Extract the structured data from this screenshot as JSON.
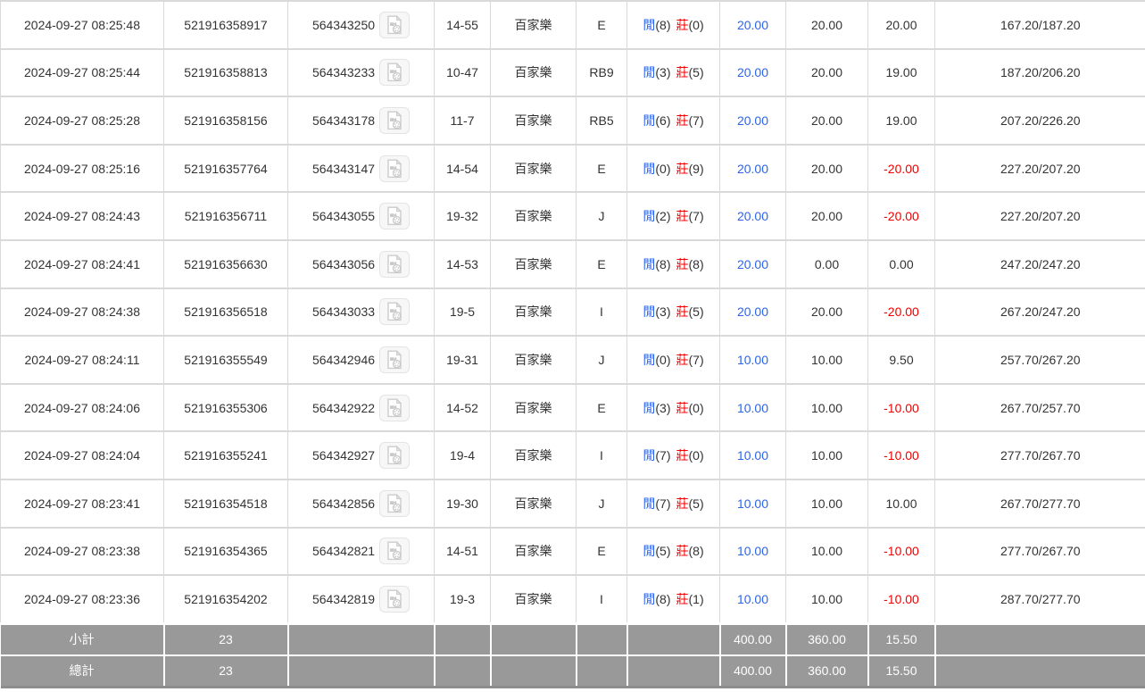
{
  "labels": {
    "player": "閒",
    "banker": "莊"
  },
  "rows": [
    {
      "time": "2024-09-27 08:25:48",
      "bet_id": "521916358917",
      "round_id": "564343250",
      "video_icon": "video-file-icon",
      "table_round": "14-55",
      "game": "百家樂",
      "result_code": "E",
      "player_pts": "(8)",
      "banker_pts": "(0)",
      "bet": "20.00",
      "valid": "20.00",
      "win_loss": "20.00",
      "balance": "167.20/187.20"
    },
    {
      "time": "2024-09-27 08:25:44",
      "bet_id": "521916358813",
      "round_id": "564343233",
      "video_icon": "video-file-icon",
      "table_round": "10-47",
      "game": "百家樂",
      "result_code": "RB9",
      "player_pts": "(3)",
      "banker_pts": "(5)",
      "bet": "20.00",
      "valid": "20.00",
      "win_loss": "19.00",
      "balance": "187.20/206.20"
    },
    {
      "time": "2024-09-27 08:25:28",
      "bet_id": "521916358156",
      "round_id": "564343178",
      "video_icon": "video-file-icon",
      "table_round": "11-7",
      "game": "百家樂",
      "result_code": "RB5",
      "player_pts": "(6)",
      "banker_pts": "(7)",
      "bet": "20.00",
      "valid": "20.00",
      "win_loss": "19.00",
      "balance": "207.20/226.20"
    },
    {
      "time": "2024-09-27 08:25:16",
      "bet_id": "521916357764",
      "round_id": "564343147",
      "video_icon": "video-file-icon",
      "table_round": "14-54",
      "game": "百家樂",
      "result_code": "E",
      "player_pts": "(0)",
      "banker_pts": "(9)",
      "bet": "20.00",
      "valid": "20.00",
      "win_loss": "-20.00",
      "balance": "227.20/207.20"
    },
    {
      "time": "2024-09-27 08:24:43",
      "bet_id": "521916356711",
      "round_id": "564343055",
      "video_icon": "video-file-icon",
      "table_round": "19-32",
      "game": "百家樂",
      "result_code": "J",
      "player_pts": "(2)",
      "banker_pts": "(7)",
      "bet": "20.00",
      "valid": "20.00",
      "win_loss": "-20.00",
      "balance": "227.20/207.20"
    },
    {
      "time": "2024-09-27 08:24:41",
      "bet_id": "521916356630",
      "round_id": "564343056",
      "video_icon": "video-file-icon",
      "table_round": "14-53",
      "game": "百家樂",
      "result_code": "E",
      "player_pts": "(8)",
      "banker_pts": "(8)",
      "bet": "20.00",
      "valid": "0.00",
      "win_loss": "0.00",
      "balance": "247.20/247.20"
    },
    {
      "time": "2024-09-27 08:24:38",
      "bet_id": "521916356518",
      "round_id": "564343033",
      "video_icon": "video-file-icon",
      "table_round": "19-5",
      "game": "百家樂",
      "result_code": "I",
      "player_pts": "(3)",
      "banker_pts": "(5)",
      "bet": "20.00",
      "valid": "20.00",
      "win_loss": "-20.00",
      "balance": "267.20/247.20"
    },
    {
      "time": "2024-09-27 08:24:11",
      "bet_id": "521916355549",
      "round_id": "564342946",
      "video_icon": "video-file-icon",
      "table_round": "19-31",
      "game": "百家樂",
      "result_code": "J",
      "player_pts": "(0)",
      "banker_pts": "(7)",
      "bet": "10.00",
      "valid": "10.00",
      "win_loss": "9.50",
      "balance": "257.70/267.20"
    },
    {
      "time": "2024-09-27 08:24:06",
      "bet_id": "521916355306",
      "round_id": "564342922",
      "video_icon": "video-file-icon",
      "table_round": "14-52",
      "game": "百家樂",
      "result_code": "E",
      "player_pts": "(3)",
      "banker_pts": "(0)",
      "bet": "10.00",
      "valid": "10.00",
      "win_loss": "-10.00",
      "balance": "267.70/257.70"
    },
    {
      "time": "2024-09-27 08:24:04",
      "bet_id": "521916355241",
      "round_id": "564342927",
      "video_icon": "video-file-icon",
      "table_round": "19-4",
      "game": "百家樂",
      "result_code": "I",
      "player_pts": "(7)",
      "banker_pts": "(0)",
      "bet": "10.00",
      "valid": "10.00",
      "win_loss": "-10.00",
      "balance": "277.70/267.70"
    },
    {
      "time": "2024-09-27 08:23:41",
      "bet_id": "521916354518",
      "round_id": "564342856",
      "video_icon": "video-file-icon",
      "table_round": "19-30",
      "game": "百家樂",
      "result_code": "J",
      "player_pts": "(7)",
      "banker_pts": "(5)",
      "bet": "10.00",
      "valid": "10.00",
      "win_loss": "10.00",
      "balance": "267.70/277.70"
    },
    {
      "time": "2024-09-27 08:23:38",
      "bet_id": "521916354365",
      "round_id": "564342821",
      "video_icon": "video-file-icon",
      "table_round": "14-51",
      "game": "百家樂",
      "result_code": "E",
      "player_pts": "(5)",
      "banker_pts": "(8)",
      "bet": "10.00",
      "valid": "10.00",
      "win_loss": "-10.00",
      "balance": "277.70/267.70"
    },
    {
      "time": "2024-09-27 08:23:36",
      "bet_id": "521916354202",
      "round_id": "564342819",
      "video_icon": "video-file-icon",
      "table_round": "19-3",
      "game": "百家樂",
      "result_code": "I",
      "player_pts": "(8)",
      "banker_pts": "(1)",
      "bet": "10.00",
      "valid": "10.00",
      "win_loss": "-10.00",
      "balance": "287.70/277.70"
    }
  ],
  "footer": {
    "subtotal": {
      "label": "小計",
      "count": "23",
      "bet": "400.00",
      "valid": "360.00",
      "win_loss": "15.50"
    },
    "total": {
      "label": "總計",
      "count": "23",
      "bet": "400.00",
      "valid": "360.00",
      "win_loss": "15.50"
    }
  },
  "colors": {
    "accent_blue": "#2b65ec",
    "accent_red": "#f00000",
    "footer_bg": "#999999",
    "footer_text": "#ffffff",
    "grid_border": "#d9d9d9"
  }
}
